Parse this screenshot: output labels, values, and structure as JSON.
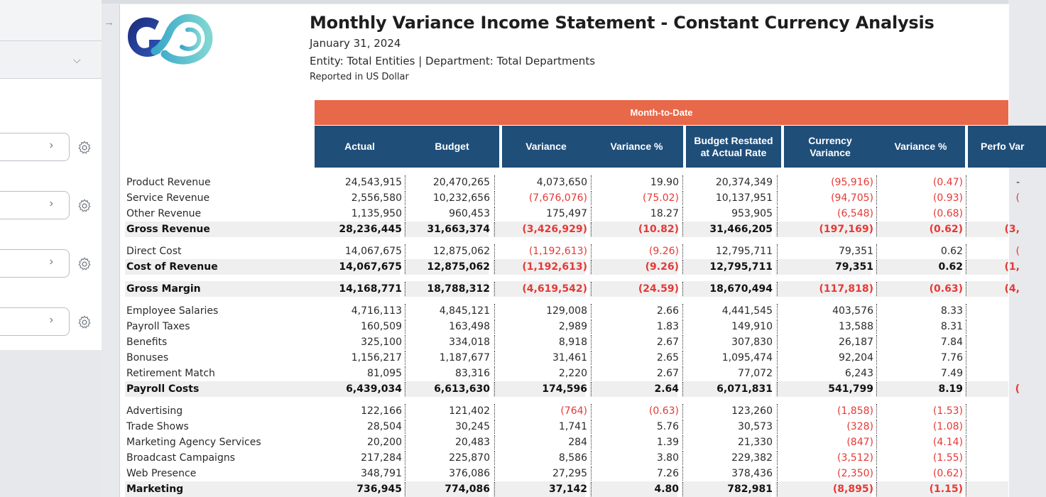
{
  "report": {
    "title": "Monthly Variance Income Statement - Constant Currency Analysis",
    "date": "January 31, 2024",
    "entity_line": "Entity: Total Entities | Department: Total Departments",
    "currency_line": "Reported in US Dollar",
    "banner": "Month-to-Date",
    "columns": [
      "Actual",
      "Budget",
      "Variance",
      "Variance %",
      "Budget Restated at Actual Rate",
      "Currency Variance",
      "Variance %",
      "Perfo Var"
    ]
  },
  "colors": {
    "banner": "#e8684a",
    "header": "#1f4e79",
    "negative": "#e53935"
  },
  "left_panel": {
    "icons": [
      "chevron-down-icon",
      "chevron-right-icon",
      "gear-icon",
      "arrow-right-icon"
    ]
  },
  "rows": [
    {
      "label": "Product Revenue",
      "v": [
        "24,543,915",
        "20,470,265",
        "4,073,650",
        "19.90",
        "20,374,349",
        "(95,916)",
        "(0.47)",
        "-"
      ]
    },
    {
      "label": "Service Revenue",
      "v": [
        "2,556,580",
        "10,232,656",
        "(7,676,076)",
        "(75.02)",
        "10,137,951",
        "(94,705)",
        "(0.93)",
        "("
      ]
    },
    {
      "label": "Other Revenue",
      "v": [
        "1,135,950",
        "960,453",
        "175,497",
        "18.27",
        "953,905",
        "(6,548)",
        "(0.68)",
        ""
      ]
    },
    {
      "label": "Gross Revenue",
      "total": true,
      "v": [
        "28,236,445",
        "31,663,374",
        "(3,426,929)",
        "(10.82)",
        "31,466,205",
        "(197,169)",
        "(0.62)",
        "(3,"
      ]
    },
    {
      "label": "Direct Cost",
      "v": [
        "14,067,675",
        "12,875,062",
        "(1,192,613)",
        "(9.26)",
        "12,795,711",
        "79,351",
        "0.62",
        "("
      ]
    },
    {
      "label": "Cost of Revenue",
      "total": true,
      "v": [
        "14,067,675",
        "12,875,062",
        "(1,192,613)",
        "(9.26)",
        "12,795,711",
        "79,351",
        "0.62",
        "(1,"
      ]
    },
    {
      "label": "Gross Margin",
      "total": true,
      "v": [
        "14,168,771",
        "18,788,312",
        "(4,619,542)",
        "(24.59)",
        "18,670,494",
        "(117,818)",
        "(0.63)",
        "(4,"
      ]
    },
    {
      "label": "Employee Salaries",
      "v": [
        "4,716,113",
        "4,845,121",
        "129,008",
        "2.66",
        "4,441,545",
        "403,576",
        "8.33",
        ""
      ]
    },
    {
      "label": "Payroll Taxes",
      "v": [
        "160,509",
        "163,498",
        "2,989",
        "1.83",
        "149,910",
        "13,588",
        "8.31",
        ""
      ]
    },
    {
      "label": "Benefits",
      "v": [
        "325,100",
        "334,018",
        "8,918",
        "2.67",
        "307,830",
        "26,187",
        "7.84",
        ""
      ]
    },
    {
      "label": "Bonuses",
      "v": [
        "1,156,217",
        "1,187,677",
        "31,461",
        "2.65",
        "1,095,474",
        "92,204",
        "7.76",
        ""
      ]
    },
    {
      "label": "Retirement Match",
      "v": [
        "81,095",
        "83,316",
        "2,220",
        "2.67",
        "77,072",
        "6,243",
        "7.49",
        ""
      ]
    },
    {
      "label": "Payroll Costs",
      "total": true,
      "v": [
        "6,439,034",
        "6,613,630",
        "174,596",
        "2.64",
        "6,071,831",
        "541,799",
        "8.19",
        "("
      ]
    },
    {
      "label": "Advertising",
      "v": [
        "122,166",
        "121,402",
        "(764)",
        "(0.63)",
        "123,260",
        "(1,858)",
        "(1.53)",
        ""
      ]
    },
    {
      "label": "Trade Shows",
      "v": [
        "28,504",
        "30,245",
        "1,741",
        "5.76",
        "30,573",
        "(328)",
        "(1.08)",
        ""
      ]
    },
    {
      "label": "Marketing Agency Services",
      "v": [
        "20,200",
        "20,483",
        "284",
        "1.39",
        "21,330",
        "(847)",
        "(4.14)",
        ""
      ]
    },
    {
      "label": "Broadcast Campaigns",
      "v": [
        "217,284",
        "225,870",
        "8,586",
        "3.80",
        "229,382",
        "(3,512)",
        "(1.55)",
        ""
      ]
    },
    {
      "label": "Web Presence",
      "v": [
        "348,791",
        "376,086",
        "27,295",
        "7.26",
        "378,436",
        "(2,350)",
        "(0.62)",
        ""
      ]
    },
    {
      "label": "Marketing",
      "total": true,
      "v": [
        "736,945",
        "774,086",
        "37,142",
        "4.80",
        "782,981",
        "(8,895)",
        "(1.15)",
        ""
      ]
    }
  ]
}
